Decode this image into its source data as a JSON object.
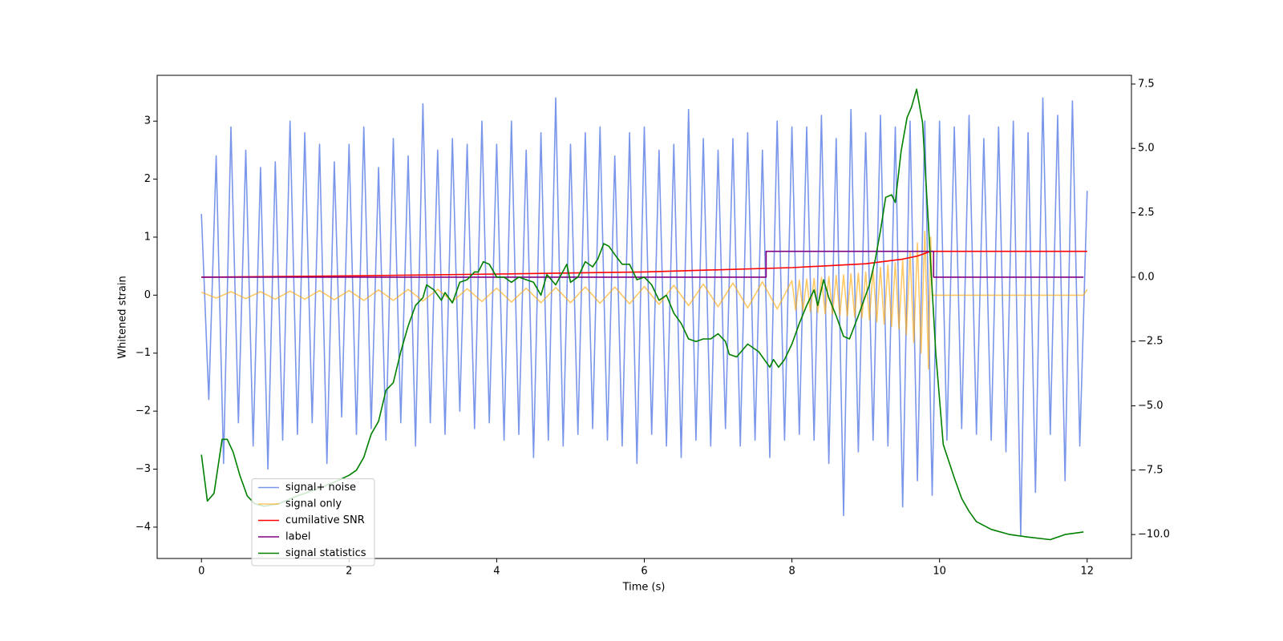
{
  "chart_data": {
    "type": "line",
    "x_label": "Time (s)",
    "y_label": "Whitened strain",
    "xlim": [
      -0.6,
      12.6
    ],
    "xticks": [
      0,
      2,
      4,
      6,
      8,
      10,
      12
    ],
    "ylim": [
      -4.54,
      3.79
    ],
    "yticks": [
      {
        "value": -4,
        "label": "−4"
      },
      {
        "value": -3,
        "label": "−3"
      },
      {
        "value": -2,
        "label": "−2"
      },
      {
        "value": -1,
        "label": "−1"
      },
      0,
      1,
      2,
      3
    ],
    "y2lim": [
      -10.93,
      7.84
    ],
    "y2ticks": [
      {
        "value": -10,
        "label": "−10.0"
      },
      {
        "value": -7.5,
        "label": "−7.5"
      },
      {
        "value": -5,
        "label": "−5.0"
      },
      {
        "value": -2.5,
        "label": "−2.5"
      },
      {
        "value": 0,
        "label": "0.0"
      },
      {
        "value": 2.5,
        "label": "2.5"
      },
      {
        "value": 5,
        "label": "5.0"
      },
      {
        "value": 7.5,
        "label": "7.5"
      }
    ],
    "legend": "lower left",
    "series": [
      {
        "name": "signal+ noise",
        "color": "royalblue",
        "x": [
          0,
          0.1,
          0.2,
          0.3,
          0.4,
          0.5,
          0.6,
          0.7,
          0.8,
          0.9,
          1,
          1.1,
          1.2,
          1.3,
          1.4,
          1.5,
          1.6,
          1.7,
          1.8,
          1.9,
          2,
          2.1,
          2.2,
          2.3,
          2.4,
          2.5,
          2.6,
          2.7,
          2.8,
          2.9,
          3,
          3.1,
          3.2,
          3.3,
          3.4,
          3.5,
          3.6,
          3.7,
          3.8,
          3.9,
          4,
          4.1,
          4.2,
          4.3,
          4.4,
          4.5,
          4.6,
          4.7,
          4.8,
          4.9,
          5,
          5.1,
          5.2,
          5.3,
          5.4,
          5.5,
          5.6,
          5.7,
          5.8,
          5.9,
          6,
          6.1,
          6.2,
          6.3,
          6.4,
          6.5,
          6.6,
          6.7,
          6.8,
          6.9,
          7,
          7.1,
          7.2,
          7.3,
          7.4,
          7.5,
          7.6,
          7.7,
          7.8,
          7.9,
          8,
          8.1,
          8.2,
          8.3,
          8.4,
          8.5,
          8.6,
          8.7,
          8.8,
          8.9,
          9,
          9.1,
          9.2,
          9.3,
          9.4,
          9.5,
          9.6,
          9.7,
          9.8,
          9.9,
          10,
          10.1,
          10.2,
          10.3,
          10.4,
          10.5,
          10.6,
          10.7,
          10.8,
          10.9,
          11,
          11.1,
          11.2,
          11.3,
          11.4,
          11.5,
          11.6,
          11.7,
          11.8,
          11.9,
          12
        ],
        "values": [
          1.4,
          -1.8,
          2.4,
          -2.9,
          2.9,
          -2.2,
          2.5,
          -2.6,
          2.2,
          -3.0,
          2.3,
          -2.5,
          3.0,
          -2.4,
          2.8,
          -2.2,
          2.6,
          -2.9,
          2.3,
          -2.1,
          2.6,
          -2.4,
          2.9,
          -2.3,
          2.2,
          -2.5,
          2.7,
          -2.2,
          2.4,
          -2.6,
          3.3,
          -2.2,
          2.5,
          -2.4,
          2.7,
          -2.0,
          2.6,
          -2.3,
          3.0,
          -2.2,
          2.6,
          -2.5,
          3.0,
          -2.4,
          2.5,
          -2.8,
          2.8,
          -2.5,
          3.4,
          -2.6,
          2.6,
          -2.4,
          2.8,
          -2.3,
          2.9,
          -2.5,
          2.4,
          -2.6,
          2.8,
          -2.9,
          2.9,
          -2.4,
          2.5,
          -2.6,
          2.6,
          -2.8,
          3.2,
          -2.5,
          2.7,
          -2.6,
          2.5,
          -2.3,
          2.7,
          -2.6,
          2.8,
          -2.5,
          2.5,
          -2.8,
          3.0,
          -2.5,
          2.9,
          -2.4,
          2.9,
          -2.5,
          3.1,
          -2.9,
          2.7,
          -3.8,
          3.2,
          -2.7,
          2.8,
          -2.5,
          3.1,
          -2.6,
          2.9,
          -3.65,
          3.0,
          -3.2,
          3.0,
          -3.45,
          3.0,
          -2.5,
          2.9,
          -2.3,
          3.1,
          -2.4,
          2.7,
          -2.5,
          2.9,
          -2.7,
          3.0,
          -4.15,
          2.8,
          -3.4,
          3.4,
          -2.4,
          3.1,
          -3.2,
          3.35,
          -2.6,
          1.8
        ]
      },
      {
        "name": "signal only",
        "color": "orange",
        "x": [
          0,
          0.2,
          0.4,
          0.6,
          0.8,
          1,
          1.2,
          1.4,
          1.6,
          1.8,
          2,
          2.2,
          2.4,
          2.6,
          2.8,
          3,
          3.2,
          3.4,
          3.6,
          3.8,
          4,
          4.2,
          4.4,
          4.6,
          4.8,
          5,
          5.2,
          5.4,
          5.6,
          5.8,
          6,
          6.2,
          6.4,
          6.6,
          6.8,
          7,
          7.2,
          7.4,
          7.6,
          7.8,
          8,
          8.05,
          8.1,
          8.15,
          8.2,
          8.25,
          8.3,
          8.35,
          8.4,
          8.45,
          8.5,
          8.55,
          8.6,
          8.65,
          8.7,
          8.75,
          8.8,
          8.85,
          8.9,
          8.95,
          9,
          9.05,
          9.1,
          9.15,
          9.2,
          9.25,
          9.3,
          9.35,
          9.4,
          9.45,
          9.5,
          9.55,
          9.6,
          9.65,
          9.7,
          9.75,
          9.8,
          9.85,
          9.88,
          9.9,
          11.95,
          12
        ],
        "values": [
          0.05,
          -0.05,
          0.06,
          -0.06,
          0.06,
          -0.07,
          0.07,
          -0.07,
          0.08,
          -0.08,
          0.08,
          -0.09,
          0.09,
          -0.09,
          0.1,
          -0.1,
          0.1,
          -0.11,
          0.11,
          -0.11,
          0.12,
          -0.12,
          0.12,
          -0.13,
          0.13,
          -0.13,
          0.14,
          -0.14,
          0.14,
          -0.15,
          0.15,
          -0.16,
          0.17,
          -0.18,
          0.19,
          -0.2,
          0.21,
          -0.22,
          0.23,
          -0.24,
          0.25,
          -0.26,
          0.26,
          -0.27,
          0.28,
          -0.29,
          0.29,
          -0.3,
          0.31,
          -0.32,
          0.32,
          -0.33,
          0.34,
          -0.35,
          0.35,
          -0.36,
          0.37,
          -0.38,
          0.38,
          -0.39,
          0.4,
          -0.42,
          0.44,
          -0.46,
          0.48,
          -0.5,
          0.52,
          -0.54,
          0.56,
          -0.58,
          0.6,
          -0.68,
          0.75,
          -0.82,
          0.9,
          -1.0,
          1.1,
          -1.27,
          1.0,
          0,
          0,
          0.1
        ]
      },
      {
        "name": "cumilative SNR",
        "color": "red",
        "axis": "y2",
        "x": [
          0,
          2,
          4,
          6,
          8,
          9,
          9.5,
          9.7,
          9.88,
          12
        ],
        "values": [
          0,
          0.05,
          0.12,
          0.2,
          0.37,
          0.52,
          0.7,
          0.82,
          1.0,
          1.0
        ]
      },
      {
        "name": "label",
        "color": "purple",
        "axis": "y2",
        "x": [
          0,
          7.65,
          7.65,
          9.92,
          9.92,
          11.95
        ],
        "values": [
          0,
          0,
          1,
          1,
          0,
          0
        ]
      },
      {
        "name": "signal statistics",
        "color": "green",
        "axis": "y2",
        "x": [
          0,
          0.08,
          0.17,
          0.28,
          0.35,
          0.43,
          0.52,
          0.62,
          0.72,
          0.85,
          1.05,
          1.3,
          1.6,
          1.85,
          2,
          2.1,
          2.2,
          2.3,
          2.4,
          2.5,
          2.6,
          2.7,
          2.8,
          2.9,
          3,
          3.05,
          3.15,
          3.25,
          3.3,
          3.4,
          3.5,
          3.6,
          3.7,
          3.75,
          3.82,
          3.9,
          4,
          4.1,
          4.2,
          4.3,
          4.4,
          4.5,
          4.6,
          4.68,
          4.8,
          4.95,
          5,
          5.1,
          5.2,
          5.3,
          5.37,
          5.45,
          5.52,
          5.62,
          5.7,
          5.8,
          5.9,
          6,
          6.1,
          6.2,
          6.3,
          6.4,
          6.5,
          6.6,
          6.7,
          6.8,
          6.9,
          7,
          7.1,
          7.15,
          7.25,
          7.4,
          7.55,
          7.7,
          7.75,
          7.82,
          7.9,
          8,
          8.1,
          8.2,
          8.3,
          8.35,
          8.43,
          8.5,
          8.6,
          8.7,
          8.78,
          8.9,
          9,
          9.05,
          9.13,
          9.2,
          9.27,
          9.35,
          9.4,
          9.48,
          9.56,
          9.62,
          9.69,
          9.77,
          9.85,
          9.95,
          10.05,
          10.2,
          10.3,
          10.4,
          10.5,
          10.7,
          10.95,
          11.2,
          11.5,
          11.7,
          11.95
        ],
        "values": [
          -6.9,
          -8.7,
          -8.4,
          -6.3,
          -6.3,
          -6.8,
          -7.7,
          -8.5,
          -8.8,
          -8.9,
          -8.8,
          -8.5,
          -8.2,
          -7.9,
          -7.7,
          -7.5,
          -7.0,
          -6.1,
          -5.6,
          -4.4,
          -4.1,
          -2.9,
          -1.9,
          -1.1,
          -0.8,
          -0.3,
          -0.5,
          -0.9,
          -0.6,
          -1.0,
          -0.2,
          -0.1,
          0.2,
          0.2,
          0.6,
          0.5,
          0.0,
          0.0,
          -0.2,
          0.0,
          -0.1,
          -0.2,
          -0.7,
          0.1,
          -0.3,
          0.5,
          -0.2,
          0.0,
          0.6,
          0.4,
          0.7,
          1.3,
          1.2,
          0.8,
          0.5,
          0.5,
          -0.1,
          0.0,
          -0.3,
          -0.9,
          -0.7,
          -1.4,
          -1.8,
          -2.4,
          -2.5,
          -2.4,
          -2.4,
          -2.2,
          -2.5,
          -3.0,
          -3.1,
          -2.6,
          -2.9,
          -3.5,
          -3.2,
          -3.5,
          -3.2,
          -2.6,
          -1.8,
          -1.1,
          -0.5,
          -1.1,
          -0.1,
          -0.8,
          -1.5,
          -2.3,
          -2.4,
          -1.5,
          -0.7,
          -0.3,
          0.7,
          1.8,
          3.1,
          3.2,
          2.9,
          4.9,
          6.2,
          6.6,
          7.3,
          6.0,
          2.0,
          -3.0,
          -6.5,
          -7.8,
          -8.6,
          -9.1,
          -9.5,
          -9.8,
          -10.0,
          -10.1,
          -10.2,
          -10.0,
          -9.9
        ]
      }
    ]
  }
}
